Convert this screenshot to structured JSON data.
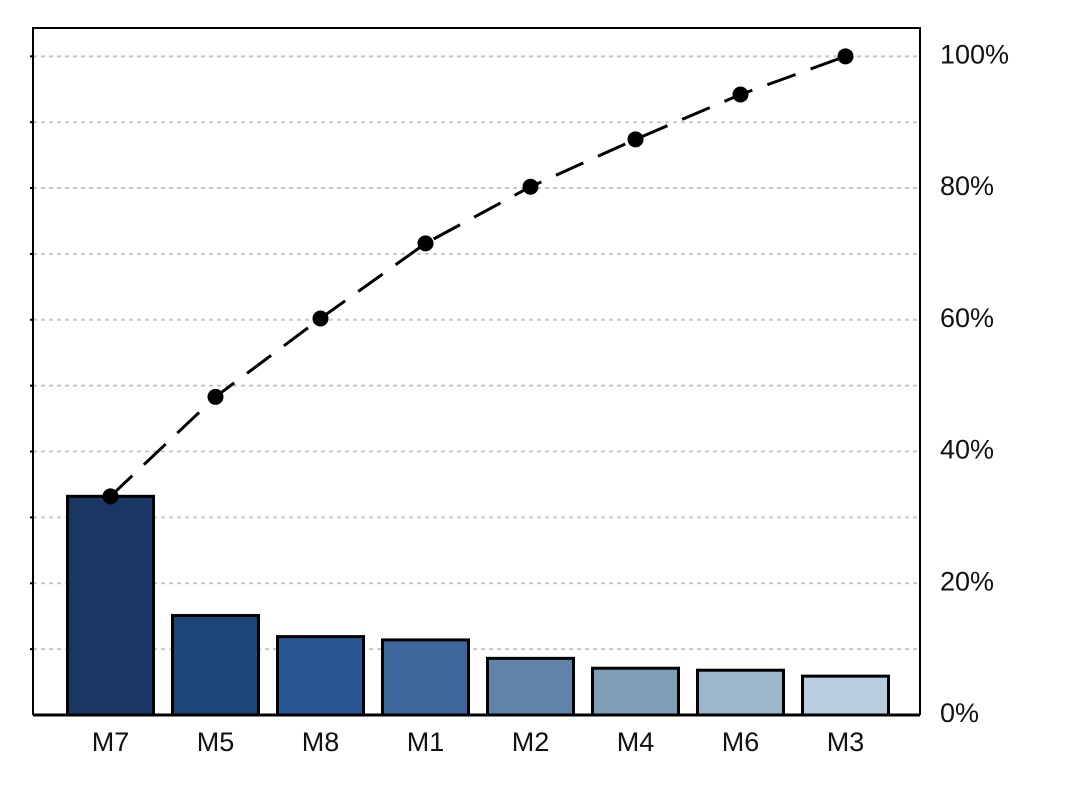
{
  "chart_data": {
    "type": "pareto",
    "categories": [
      "M7",
      "M5",
      "M8",
      "M1",
      "M2",
      "M4",
      "M6",
      "M3"
    ],
    "series": [
      {
        "values": [
          33.2,
          15.1,
          11.9,
          11.4,
          8.6,
          7.1,
          6.8,
          5.9
        ],
        "colors": [
          "#1a3764",
          "#1e4577",
          "#275590",
          "#3e679c",
          "#5f84a8",
          "#7f9fb7",
          "#9cb6cb",
          "#b9cde1"
        ]
      },
      {
        "values": [
          33.2,
          48.3,
          60.2,
          71.6,
          80.2,
          87.4,
          94.2,
          100
        ],
        "color": "#000000"
      }
    ],
    "ylim": [
      0,
      104.3
    ],
    "yticks": [
      {
        "value": 0,
        "label": "0%"
      },
      {
        "value": 20,
        "label": "20%"
      },
      {
        "value": 40,
        "label": "40%"
      },
      {
        "value": 60,
        "label": "60%"
      },
      {
        "value": 80,
        "label": "80%"
      },
      {
        "value": 100,
        "label": "100%"
      }
    ],
    "minor_yticks": [
      10,
      30,
      50,
      70,
      90
    ],
    "grid": true
  }
}
